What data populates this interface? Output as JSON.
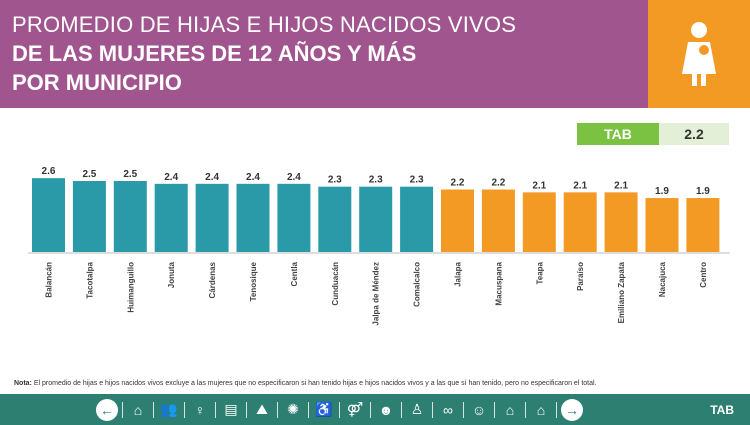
{
  "header": {
    "line1": "PROMEDIO DE HIJAS E HIJOS NACIDOS VIVOS",
    "line2": "DE LAS MUJERES DE 12 AÑOS Y MÁS",
    "line3": "POR MUNICIPIO",
    "icon": "mother-with-child-icon"
  },
  "state_summary": {
    "label": "TAB",
    "value": "2.2"
  },
  "colors": {
    "header": "#a0558f",
    "above": "#2b9aa8",
    "below": "#f39a25",
    "footer": "#2d7f72",
    "badge": "#7cc242"
  },
  "chart_data": {
    "type": "bar",
    "categories": [
      "Balancán",
      "Tacotalpa",
      "Huimanguillo",
      "Jonuta",
      "Cárdenas",
      "Tenosique",
      "Centla",
      "Cunduacán",
      "Jalpa de Méndez",
      "Comalcalco",
      "Jalapa",
      "Macuspana",
      "Teapa",
      "Paraíso",
      "Emiliano Zapata",
      "Nacajuca",
      "Centro"
    ],
    "values": [
      2.6,
      2.5,
      2.5,
      2.4,
      2.4,
      2.4,
      2.4,
      2.3,
      2.3,
      2.3,
      2.2,
      2.2,
      2.1,
      2.1,
      2.1,
      1.9,
      1.9
    ],
    "value_labels": [
      "2.6",
      "2.5",
      "2.5",
      "2.4",
      "2.4",
      "2.4",
      "2.4",
      "2.3",
      "2.3",
      "2.3",
      "2.2",
      "2.2",
      "2.1",
      "2.1",
      "2.1",
      "1.9",
      "1.9"
    ],
    "bar_colors": [
      "#2b9aa8",
      "#2b9aa8",
      "#2b9aa8",
      "#2b9aa8",
      "#2b9aa8",
      "#2b9aa8",
      "#2b9aa8",
      "#2b9aa8",
      "#2b9aa8",
      "#2b9aa8",
      "#f39a25",
      "#f39a25",
      "#f39a25",
      "#f39a25",
      "#f39a25",
      "#f39a25",
      "#f39a25"
    ],
    "grid": false,
    "legend": "none"
  },
  "note": {
    "label": "Nota:",
    "text": " El promedio de hijas e hijos nacidos vivos excluye a las mujeres que no especificaron si han tenido hijas e hijos nacidos vivos y a las que sí han tenido, pero no especificaron el total."
  },
  "footer": {
    "icons": [
      "arrow-left-icon",
      "building-icon",
      "people-group-icon",
      "person-icon",
      "documents-icon",
      "map-icon",
      "sun-icon",
      "wheelchair-icon",
      "couple-icon",
      "family-icon",
      "elder-icon",
      "rings-icon",
      "child-icon",
      "house-people-icon",
      "home-icon",
      "arrow-right-icon"
    ],
    "state": "TAB"
  }
}
